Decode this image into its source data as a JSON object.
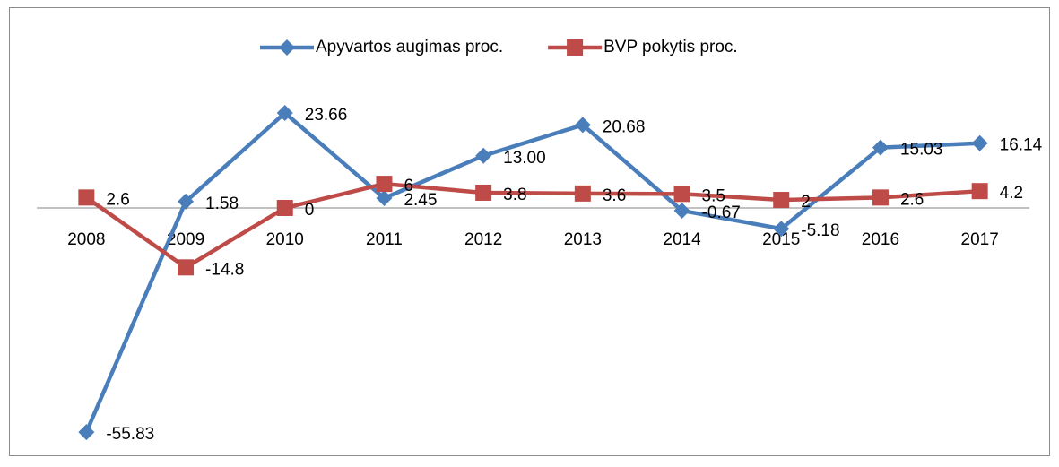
{
  "chart_data": {
    "type": "line",
    "categories": [
      "2008",
      "2009",
      "2010",
      "2011",
      "2012",
      "2013",
      "2014",
      "2015",
      "2016",
      "2017"
    ],
    "series": [
      {
        "name": "Apyvartos augimas proc.",
        "color": "#4a7ebb",
        "marker": "diamond",
        "values": [
          -55.83,
          1.58,
          23.66,
          2.45,
          13.0,
          20.68,
          -0.67,
          -5.18,
          15.03,
          16.14
        ],
        "value_labels": [
          "-55.83",
          "1.58",
          "23.66",
          "2.45",
          "13.00",
          "20.68",
          "-0.67",
          "-5.18",
          "15.03",
          "16.14"
        ]
      },
      {
        "name": "BVP pokytis proc.",
        "color": "#be4b48",
        "marker": "square",
        "values": [
          2.6,
          -14.8,
          0,
          6,
          3.8,
          3.6,
          3.5,
          2,
          2.6,
          4.2
        ]
      }
    ],
    "ylim": [
      -60,
      30
    ],
    "legend": "top"
  }
}
